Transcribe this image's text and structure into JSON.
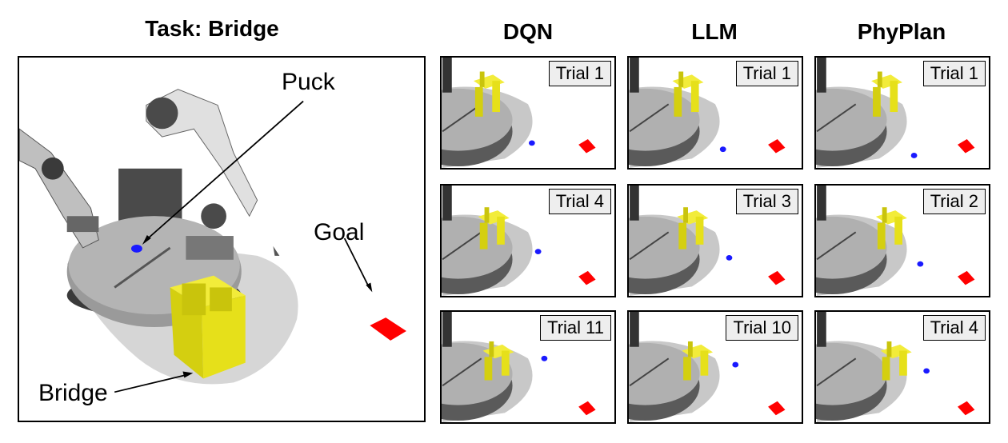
{
  "task_title": "Task: Bridge",
  "main_panel": {
    "puck_label": "Puck",
    "goal_label": "Goal",
    "bridge_label": "Bridge"
  },
  "columns": [
    {
      "method": "DQN",
      "trials": [
        "Trial 1",
        "Trial 4",
        "Trial 11"
      ]
    },
    {
      "method": "LLM",
      "trials": [
        "Trial 1",
        "Trial 3",
        "Trial 10"
      ]
    },
    {
      "method": "PhyPlan",
      "trials": [
        "Trial 1",
        "Trial 2",
        "Trial 4"
      ]
    }
  ],
  "colors": {
    "bridge": "#e6e01a",
    "goal": "#ff0000",
    "puck": "#1a1aff",
    "table": "#8a8a8a",
    "shadow": "#c8c8c8"
  }
}
